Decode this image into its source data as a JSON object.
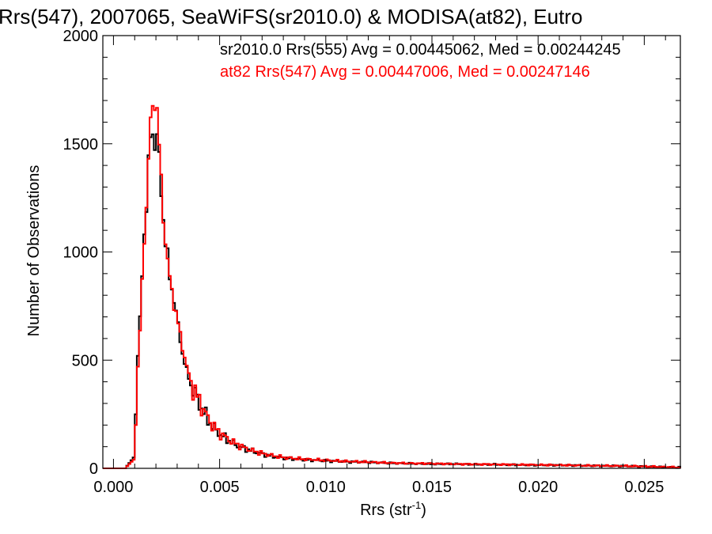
{
  "chart_data": {
    "type": "line",
    "title": "Rrs(547), 2007065, SeaWiFS(sr2010.0) & MODISA(at82), Eutro",
    "xlabel": "Rrs (str",
    "xlabel_sup": "-1",
    "xlabel_close": ")",
    "ylabel": "Number of Observations",
    "xlim": [
      -0.0005,
      0.0267
    ],
    "ylim": [
      0,
      2000
    ],
    "xticks": [
      0.0,
      0.005,
      0.01,
      0.015,
      0.02,
      0.025
    ],
    "xtick_labels": [
      "0.000",
      "0.005",
      "0.010",
      "0.015",
      "0.020",
      "0.025"
    ],
    "yticks": [
      0,
      500,
      1000,
      1500,
      2000
    ],
    "ytick_labels": [
      "0",
      "500",
      "1000",
      "1500",
      "2000"
    ],
    "grid": false,
    "annotations": [
      {
        "text": "sr2010.0 Rrs(555) Avg = 0.00445062, Med = 0.00244245",
        "color": "#000000"
      },
      {
        "text": "at82 Rrs(547) Avg = 0.00447006, Med = 0.00247146",
        "color": "#ff0000"
      }
    ],
    "series": [
      {
        "name": "sr2010.0 Rrs(555)",
        "color": "#000000",
        "x": [
          -0.0005,
          0.0005,
          0.0009,
          0.001,
          0.0011,
          0.0012,
          0.0013,
          0.0014,
          0.0015,
          0.0016,
          0.0017,
          0.0018,
          0.0019,
          0.002,
          0.0021,
          0.0022,
          0.0023,
          0.0024,
          0.0025,
          0.0026,
          0.0027,
          0.0028,
          0.003,
          0.0032,
          0.0034,
          0.0036,
          0.0038,
          0.004,
          0.0043,
          0.0046,
          0.005,
          0.0055,
          0.006,
          0.0065,
          0.007,
          0.0075,
          0.008,
          0.009,
          0.01,
          0.011,
          0.012,
          0.013,
          0.014,
          0.015,
          0.016,
          0.017,
          0.018,
          0.019,
          0.02,
          0.021,
          0.022,
          0.023,
          0.024,
          0.025,
          0.026,
          0.0267
        ],
        "y": [
          0,
          0,
          50,
          250,
          520,
          680,
          900,
          1080,
          1220,
          1400,
          1530,
          1550,
          1500,
          1540,
          1420,
          1280,
          1150,
          1050,
          980,
          880,
          830,
          780,
          660,
          530,
          450,
          390,
          340,
          300,
          240,
          195,
          155,
          120,
          95,
          80,
          65,
          55,
          48,
          40,
          35,
          30,
          28,
          24,
          22,
          20,
          20,
          18,
          18,
          16,
          15,
          15,
          13,
          12,
          11,
          8,
          5,
          4
        ]
      },
      {
        "name": "at82 Rrs(547)",
        "color": "#ff0000",
        "x": [
          -0.0005,
          0.0005,
          0.0009,
          0.001,
          0.0011,
          0.0012,
          0.0013,
          0.0014,
          0.0015,
          0.0016,
          0.0017,
          0.0018,
          0.0019,
          0.002,
          0.0021,
          0.0022,
          0.0023,
          0.0024,
          0.0025,
          0.0026,
          0.0027,
          0.0028,
          0.003,
          0.0032,
          0.0034,
          0.0036,
          0.0038,
          0.004,
          0.0043,
          0.0046,
          0.005,
          0.0055,
          0.006,
          0.0065,
          0.007,
          0.0075,
          0.008,
          0.009,
          0.01,
          0.011,
          0.012,
          0.013,
          0.014,
          0.015,
          0.016,
          0.017,
          0.018,
          0.019,
          0.02,
          0.021,
          0.022,
          0.023,
          0.024,
          0.025,
          0.026,
          0.0267
        ],
        "y": [
          0,
          0,
          40,
          200,
          470,
          640,
          850,
          1050,
          1230,
          1420,
          1610,
          1640,
          1720,
          1650,
          1500,
          1320,
          1160,
          1050,
          960,
          880,
          820,
          760,
          670,
          560,
          470,
          400,
          350,
          310,
          250,
          200,
          160,
          125,
          100,
          82,
          68,
          58,
          50,
          42,
          37,
          32,
          29,
          25,
          23,
          22,
          20,
          19,
          18,
          17,
          16,
          15,
          13,
          12,
          11,
          9,
          6,
          4
        ]
      }
    ]
  }
}
